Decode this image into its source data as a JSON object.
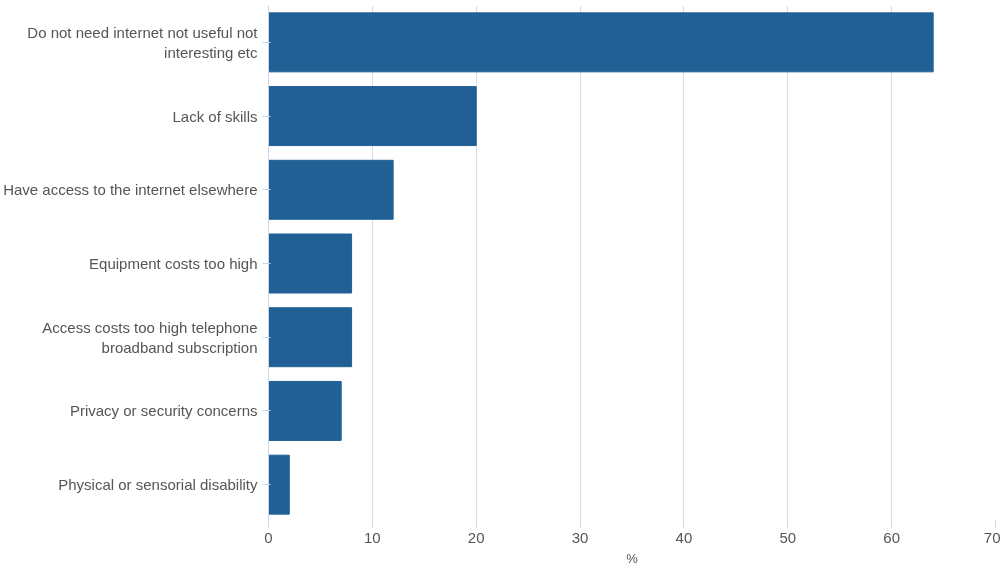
{
  "chart_data": {
    "type": "bar",
    "orientation": "horizontal",
    "xlabel": "%",
    "categories": [
      "Do not need internet not useful not interesting etc",
      "Lack of skills",
      "Have access to the internet elsewhere",
      "Equipment costs too high",
      "Access costs too high telephone broadband subscription",
      "Privacy or security concerns",
      "Physical or sensorial disability"
    ],
    "values": [
      64,
      20,
      12,
      8,
      8,
      7,
      2
    ],
    "color": "#206095",
    "xlim": [
      0,
      70
    ],
    "xticks": [
      0,
      10,
      20,
      30,
      40,
      50,
      60,
      70
    ],
    "grid": "x"
  }
}
